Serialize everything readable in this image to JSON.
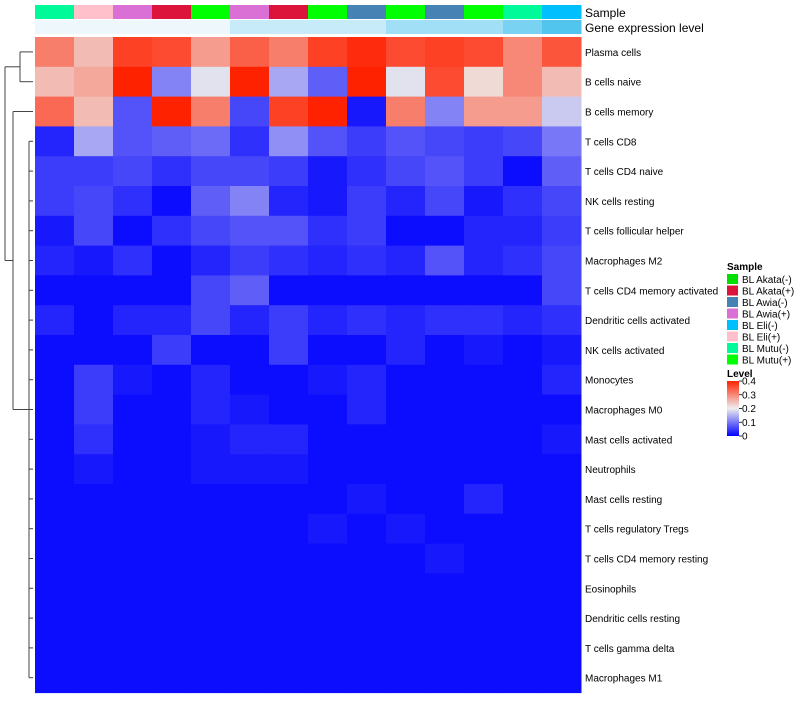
{
  "chart_data": {
    "type": "heatmap",
    "annotation_tracks": [
      "Sample",
      "Gene expression level"
    ],
    "rows": [
      "Plasma cells",
      "B cells naive",
      "B cells memory",
      "T cells CD8",
      "T cells CD4 naive",
      "NK cells resting",
      "T cells follicular helper",
      "Macrophages M2",
      "T cells CD4 memory activated",
      "Dendritic cells activated",
      "NK cells activated",
      "Monocytes",
      "Macrophages M0",
      "Mast cells activated",
      "Neutrophils",
      "Mast cells resting",
      "T cells regulatory  Tregs",
      "T cells CD4 memory resting",
      "Eosinophils",
      "Dendritic cells resting",
      "T cells gamma delta",
      "Macrophages M1"
    ],
    "column_samples": [
      "BL Mutu(-)",
      "BL Eli(+)",
      "BL Awia(+)",
      "BL Akata(+)",
      "BL Mutu(+)",
      "BL Awia(+)",
      "BL Akata(+)",
      "BL Mutu(+)",
      "BL Awia(-)",
      "BL Mutu(+)",
      "BL Awia(-)",
      "BL Mutu(+)",
      "BL Mutu(-)",
      "BL Eli(-)"
    ],
    "gene_expression_level": [
      0.07,
      0.07,
      0.07,
      0.07,
      0.07,
      0.08,
      0.08,
      0.08,
      0.08,
      0.09,
      0.09,
      0.09,
      0.1,
      0.11
    ],
    "values": [
      [
        0.31,
        0.25,
        0.37,
        0.36,
        0.28,
        0.34,
        0.31,
        0.37,
        0.39,
        0.36,
        0.37,
        0.36,
        0.3,
        0.35
      ],
      [
        0.25,
        0.27,
        0.4,
        0.11,
        0.19,
        0.4,
        0.14,
        0.08,
        0.4,
        0.19,
        0.36,
        0.22,
        0.3,
        0.25
      ],
      [
        0.33,
        0.25,
        0.07,
        0.4,
        0.31,
        0.06,
        0.37,
        0.4,
        0.02,
        0.31,
        0.11,
        0.28,
        0.28,
        0.17
      ],
      [
        0.03,
        0.14,
        0.07,
        0.08,
        0.09,
        0.04,
        0.12,
        0.07,
        0.05,
        0.07,
        0.06,
        0.05,
        0.06,
        0.1
      ],
      [
        0.05,
        0.05,
        0.06,
        0.04,
        0.06,
        0.06,
        0.05,
        0.02,
        0.04,
        0.06,
        0.07,
        0.05,
        0.01,
        0.08
      ],
      [
        0.05,
        0.06,
        0.04,
        0.01,
        0.08,
        0.11,
        0.03,
        0.02,
        0.05,
        0.03,
        0.06,
        0.02,
        0.04,
        0.06
      ],
      [
        0.02,
        0.06,
        0.01,
        0.04,
        0.06,
        0.07,
        0.07,
        0.04,
        0.05,
        0.01,
        0.01,
        0.03,
        0.03,
        0.05
      ],
      [
        0.03,
        0.02,
        0.04,
        0.01,
        0.03,
        0.05,
        0.04,
        0.03,
        0.04,
        0.03,
        0.07,
        0.03,
        0.04,
        0.06
      ],
      [
        0.01,
        0.01,
        0.01,
        0.01,
        0.06,
        0.08,
        0.01,
        0.01,
        0.01,
        0.01,
        0.01,
        0.01,
        0.01,
        0.06
      ],
      [
        0.03,
        0.01,
        0.03,
        0.03,
        0.06,
        0.03,
        0.05,
        0.03,
        0.04,
        0.03,
        0.04,
        0.04,
        0.03,
        0.04
      ],
      [
        0.01,
        0.01,
        0.01,
        0.05,
        0.01,
        0.01,
        0.05,
        0.01,
        0.01,
        0.03,
        0.01,
        0.02,
        0.01,
        0.02
      ],
      [
        0.01,
        0.05,
        0.02,
        0.01,
        0.03,
        0.01,
        0.01,
        0.02,
        0.03,
        0.01,
        0.01,
        0.01,
        0.01,
        0.03
      ],
      [
        0.01,
        0.05,
        0.01,
        0.01,
        0.03,
        0.02,
        0.01,
        0.01,
        0.03,
        0.01,
        0.01,
        0.01,
        0.01,
        0.01
      ],
      [
        0.01,
        0.04,
        0.01,
        0.01,
        0.02,
        0.03,
        0.03,
        0.01,
        0.01,
        0.01,
        0.01,
        0.01,
        0.01,
        0.02
      ],
      [
        0.01,
        0.02,
        0.01,
        0.01,
        0.02,
        0.02,
        0.02,
        0.01,
        0.01,
        0.01,
        0.01,
        0.01,
        0.01,
        0.01
      ],
      [
        0.01,
        0.01,
        0.01,
        0.01,
        0.01,
        0.01,
        0.01,
        0.01,
        0.02,
        0.01,
        0.01,
        0.03,
        0.01,
        0.01
      ],
      [
        0.01,
        0.01,
        0.01,
        0.01,
        0.01,
        0.01,
        0.01,
        0.02,
        0.01,
        0.02,
        0.01,
        0.01,
        0.01,
        0.01
      ],
      [
        0.01,
        0.01,
        0.01,
        0.01,
        0.01,
        0.01,
        0.01,
        0.01,
        0.01,
        0.01,
        0.02,
        0.01,
        0.01,
        0.01
      ],
      [
        0.01,
        0.01,
        0.01,
        0.01,
        0.01,
        0.01,
        0.01,
        0.01,
        0.01,
        0.01,
        0.01,
        0.01,
        0.01,
        0.01
      ],
      [
        0.01,
        0.01,
        0.01,
        0.01,
        0.01,
        0.01,
        0.01,
        0.01,
        0.01,
        0.01,
        0.01,
        0.01,
        0.01,
        0.01
      ],
      [
        0.01,
        0.01,
        0.01,
        0.01,
        0.01,
        0.01,
        0.01,
        0.01,
        0.01,
        0.01,
        0.01,
        0.01,
        0.01,
        0.01
      ],
      [
        0.01,
        0.01,
        0.01,
        0.01,
        0.01,
        0.01,
        0.01,
        0.01,
        0.01,
        0.01,
        0.01,
        0.01,
        0.01,
        0.01
      ]
    ],
    "color_scale": {
      "stops": [
        [
          0,
          "#0000FF"
        ],
        [
          0.2,
          "#EEEEEE"
        ],
        [
          0.4,
          "#FF2200"
        ]
      ],
      "ticks": [
        "0.4",
        "0.3",
        "0.2",
        "0.1",
        "0"
      ],
      "tick_values": [
        0.4,
        0.3,
        0.2,
        0.1,
        0
      ]
    },
    "gene_expression_scale": {
      "low": "#EEF8FC",
      "high": "#52C5EE",
      "min": 0.07,
      "max": 0.11
    },
    "legend": {
      "position": "right",
      "sample_title": "Sample",
      "sample_entries": [
        {
          "label": "BL Akata(-)",
          "color": "#00E000"
        },
        {
          "label": "BL Akata(+)",
          "color": "#DC143C"
        },
        {
          "label": "BL Awia(-)",
          "color": "#4682B4"
        },
        {
          "label": "BL Awia(+)",
          "color": "#DA70D6"
        },
        {
          "label": "BL Eli(-)",
          "color": "#00BFFF"
        },
        {
          "label": "BL Eli(+)",
          "color": "#FFC0CB"
        },
        {
          "label": "BL Mutu(-)",
          "color": "#00FA9A"
        },
        {
          "label": "BL Mutu(+)",
          "color": "#00FF00"
        }
      ],
      "level_title": "Level"
    },
    "dendrogram": true
  }
}
